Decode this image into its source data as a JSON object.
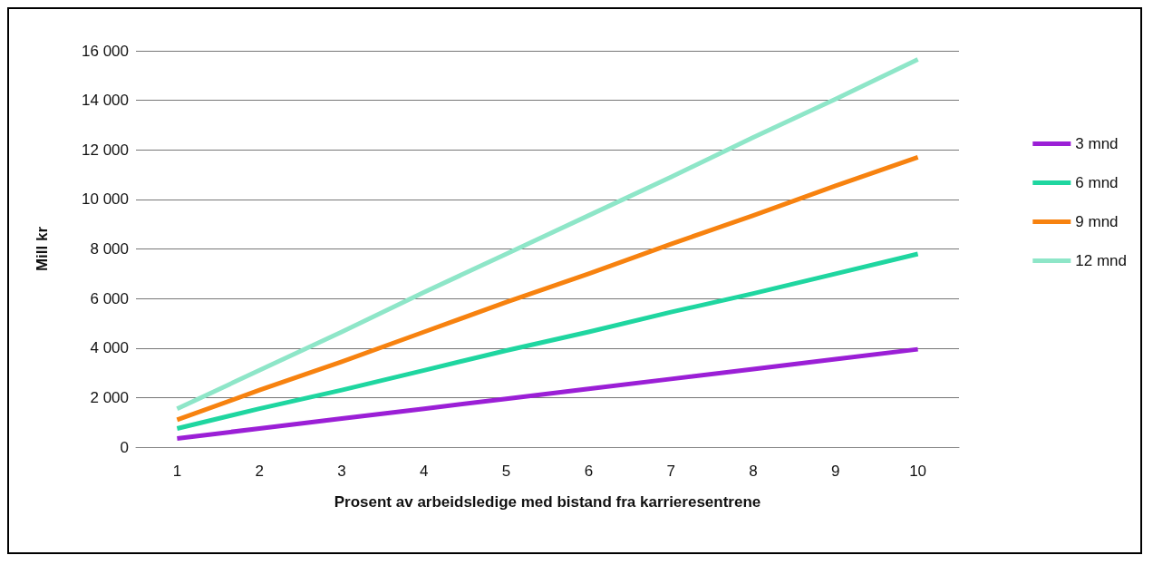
{
  "chart_data": {
    "type": "line",
    "xlabel": "Prosent av arbeidsledige med bistand fra karrieresentrene",
    "ylabel": "Mill kr",
    "categories": [
      "1",
      "2",
      "3",
      "4",
      "5",
      "6",
      "7",
      "8",
      "9",
      "10"
    ],
    "series": [
      {
        "name": "3 mnd",
        "color": "#9b1fd6",
        "values": [
          350,
          750,
          1150,
          1550,
          1950,
          2350,
          2750,
          3150,
          3550,
          3950
        ]
      },
      {
        "name": "6 mnd",
        "color": "#1fd6a0",
        "values": [
          750,
          1550,
          2300,
          3100,
          3900,
          4650,
          5450,
          6200,
          7000,
          7800
        ]
      },
      {
        "name": "9 mnd",
        "color": "#f7820f",
        "values": [
          1100,
          2300,
          3450,
          4650,
          5850,
          7000,
          8200,
          9350,
          10550,
          11700
        ]
      },
      {
        "name": "12 mnd",
        "color": "#8ee6c8",
        "values": [
          1550,
          3100,
          4650,
          6250,
          7800,
          9350,
          10900,
          12500,
          14050,
          15650
        ]
      }
    ],
    "ylim": [
      0,
      16000
    ],
    "yticks": [
      {
        "value": 0,
        "label": "0"
      },
      {
        "value": 2000,
        "label": "2 000"
      },
      {
        "value": 4000,
        "label": "4 000"
      },
      {
        "value": 6000,
        "label": "6 000"
      },
      {
        "value": 8000,
        "label": "8 000"
      },
      {
        "value": 10000,
        "label": "10 000"
      },
      {
        "value": 12000,
        "label": "12 000"
      },
      {
        "value": 14000,
        "label": "14 000"
      },
      {
        "value": 16000,
        "label": "16 000"
      }
    ],
    "grid": "y",
    "legend": "right",
    "marker": "none",
    "line_style": "solid"
  }
}
